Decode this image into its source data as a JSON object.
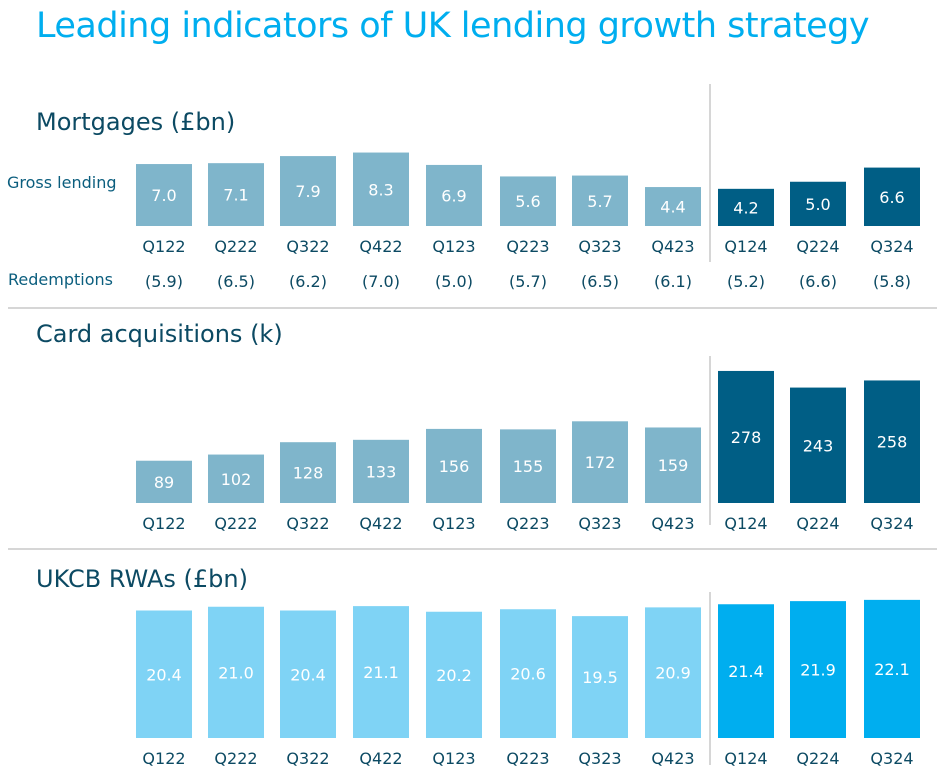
{
  "title": "Leading indicators of UK lending growth strategy",
  "panels": {
    "mortgages": {
      "title": "Mortgages (£bn)",
      "series_label": "Gross lending",
      "redemptions_label": "Redemptions"
    },
    "cards": {
      "title": "Card acquisitions (k)"
    },
    "rwas": {
      "title": "UKCB RWAs (£bn)"
    }
  },
  "colors": {
    "light_teal": "#7fb5cb",
    "dark_teal": "#005e85",
    "light_sky": "#7fd3f5",
    "bright_sky": "#00aeef",
    "divider": "#c8c8c8",
    "text": "#0c4a63"
  },
  "chart_data": [
    {
      "type": "bar",
      "title": "Mortgages (£bn)",
      "categories": [
        "Q122",
        "Q222",
        "Q322",
        "Q422",
        "Q123",
        "Q223",
        "Q323",
        "Q423",
        "Q124",
        "Q224",
        "Q324"
      ],
      "series": [
        {
          "name": "Gross lending",
          "values": [
            7.0,
            7.1,
            7.9,
            8.3,
            6.9,
            5.6,
            5.7,
            4.4,
            4.2,
            5.0,
            6.6
          ],
          "labels": [
            "7.0",
            "7.1",
            "7.9",
            "8.3",
            "6.9",
            "5.6",
            "5.7",
            "4.4",
            "4.2",
            "5.0",
            "6.6"
          ]
        }
      ],
      "redemptions": [
        "(5.9)",
        "(6.5)",
        "(6.2)",
        "(7.0)",
        "(5.0)",
        "(5.7)",
        "(6.5)",
        "(6.1)",
        "(5.2)",
        "(6.6)",
        "(5.8)"
      ],
      "highlight_from_index": 8
    },
    {
      "type": "bar",
      "title": "Card acquisitions (k)",
      "categories": [
        "Q122",
        "Q222",
        "Q322",
        "Q422",
        "Q123",
        "Q223",
        "Q323",
        "Q423",
        "Q124",
        "Q224",
        "Q324"
      ],
      "values": [
        89,
        102,
        128,
        133,
        156,
        155,
        172,
        159,
        278,
        243,
        258
      ],
      "highlight_from_index": 8
    },
    {
      "type": "bar",
      "title": "UKCB RWAs (£bn)",
      "categories": [
        "Q122",
        "Q222",
        "Q322",
        "Q422",
        "Q123",
        "Q223",
        "Q323",
        "Q423",
        "Q124",
        "Q224",
        "Q324"
      ],
      "values": [
        20.4,
        21.0,
        20.4,
        21.1,
        20.2,
        20.6,
        19.5,
        20.9,
        21.4,
        21.9,
        22.1
      ],
      "labels": [
        "20.4",
        "21.0",
        "20.4",
        "21.1",
        "20.2",
        "20.6",
        "19.5",
        "20.9",
        "21.4",
        "21.9",
        "22.1"
      ],
      "highlight_from_index": 8
    }
  ]
}
